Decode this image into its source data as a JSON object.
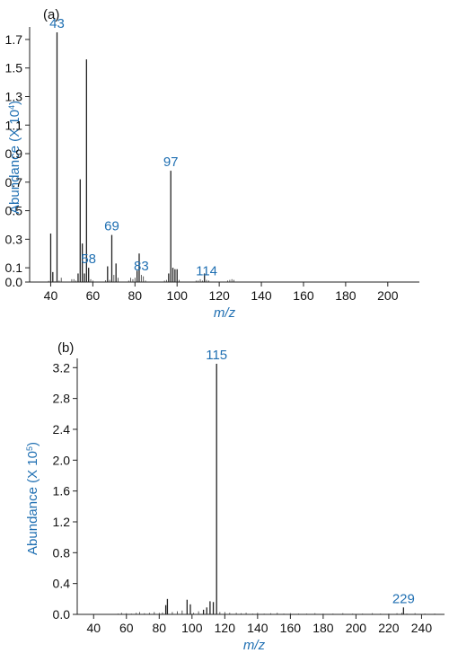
{
  "chart_data": [
    {
      "type": "bar",
      "panel_label": "(a)",
      "title": "",
      "xlabel": "m/z",
      "ylabel": "Abundance (X 10",
      "ylabel_exponent": "4",
      "ylabel_close": ")",
      "xlim": [
        30,
        215
      ],
      "ylim": [
        0,
        1.75
      ],
      "x_ticks": [
        40,
        60,
        80,
        100,
        120,
        140,
        160,
        180,
        200
      ],
      "y_ticks": [
        "0.0",
        "0.1",
        "0.3",
        "0.5",
        "0.7",
        "0.9",
        "1.1",
        "1.3",
        "1.5",
        "1.7"
      ],
      "grid": false,
      "series": [
        {
          "x": [
            39,
            40,
            41,
            42,
            43,
            44,
            45,
            50,
            51,
            52,
            53,
            54,
            55,
            56,
            57,
            58,
            59,
            60,
            66,
            67,
            68,
            69,
            70,
            71,
            72,
            77,
            78,
            79,
            80,
            81,
            82,
            83,
            84,
            85,
            94,
            95,
            96,
            97,
            98,
            99,
            100,
            101,
            109,
            110,
            111,
            112,
            113,
            114,
            115,
            124,
            125,
            126,
            127
          ],
          "values": [
            0.008,
            0.34,
            0.07,
            0.005,
            1.75,
            0.01,
            0.03,
            0.02,
            0.02,
            0.01,
            0.06,
            0.72,
            0.27,
            0.06,
            1.56,
            0.1,
            0.02,
            0.01,
            0.012,
            0.11,
            0.015,
            0.33,
            0.05,
            0.13,
            0.03,
            0.01,
            0.03,
            0.02,
            0.03,
            0.08,
            0.2,
            0.05,
            0.04,
            0.01,
            0.01,
            0.015,
            0.06,
            0.78,
            0.1,
            0.09,
            0.09,
            0.015,
            0.01,
            0.01,
            0.02,
            0.01,
            0.06,
            0.015,
            0.01,
            0.01,
            0.015,
            0.02,
            0.015
          ]
        }
      ],
      "peak_labels": [
        "43",
        "58",
        "69",
        "83",
        "97",
        "114"
      ]
    },
    {
      "type": "bar",
      "panel_label": "(b)",
      "title": "",
      "xlabel": "m/z",
      "ylabel": "Abundance (X 10",
      "ylabel_exponent": "5",
      "ylabel_close": ")",
      "xlim": [
        30,
        254
      ],
      "ylim": [
        0,
        3.25
      ],
      "x_ticks": [
        40,
        60,
        80,
        100,
        120,
        140,
        160,
        180,
        200,
        220,
        240
      ],
      "y_ticks": [
        "0.0",
        "0.4",
        "0.8",
        "1.2",
        "1.6",
        "2.0",
        "2.4",
        "2.8",
        "3.2"
      ],
      "grid": false,
      "series": [
        {
          "x": [
            55,
            57,
            60,
            63,
            66,
            68,
            71,
            74,
            77,
            80,
            82,
            84,
            85,
            88,
            91,
            94,
            97,
            99,
            101,
            104,
            107,
            109,
            111,
            113,
            115,
            117,
            120,
            123,
            127,
            130,
            133,
            137,
            140,
            144,
            148,
            152,
            156,
            160,
            165,
            170,
            175,
            180,
            186,
            192,
            198,
            204,
            210,
            215,
            220,
            225,
            228,
            229,
            231,
            236,
            242,
            248
          ],
          "values": [
            0.01,
            0.02,
            0.015,
            0.01,
            0.02,
            0.03,
            0.015,
            0.02,
            0.03,
            0.02,
            0.025,
            0.12,
            0.2,
            0.03,
            0.04,
            0.05,
            0.19,
            0.13,
            0.02,
            0.04,
            0.06,
            0.09,
            0.17,
            0.16,
            3.25,
            0.03,
            0.03,
            0.02,
            0.02,
            0.015,
            0.02,
            0.01,
            0.02,
            0.01,
            0.015,
            0.02,
            0.01,
            0.015,
            0.01,
            0.01,
            0.015,
            0.01,
            0.01,
            0.015,
            0.01,
            0.01,
            0.015,
            0.01,
            0.01,
            0.015,
            0.02,
            0.09,
            0.01,
            0.015,
            0.01,
            0.01
          ]
        }
      ],
      "peak_labels": [
        "115",
        "229"
      ]
    }
  ],
  "colors": {
    "axis_title": "#1f6fb2",
    "peak_label": "#1f6fb2",
    "bars": "#222222",
    "text": "#111111"
  }
}
